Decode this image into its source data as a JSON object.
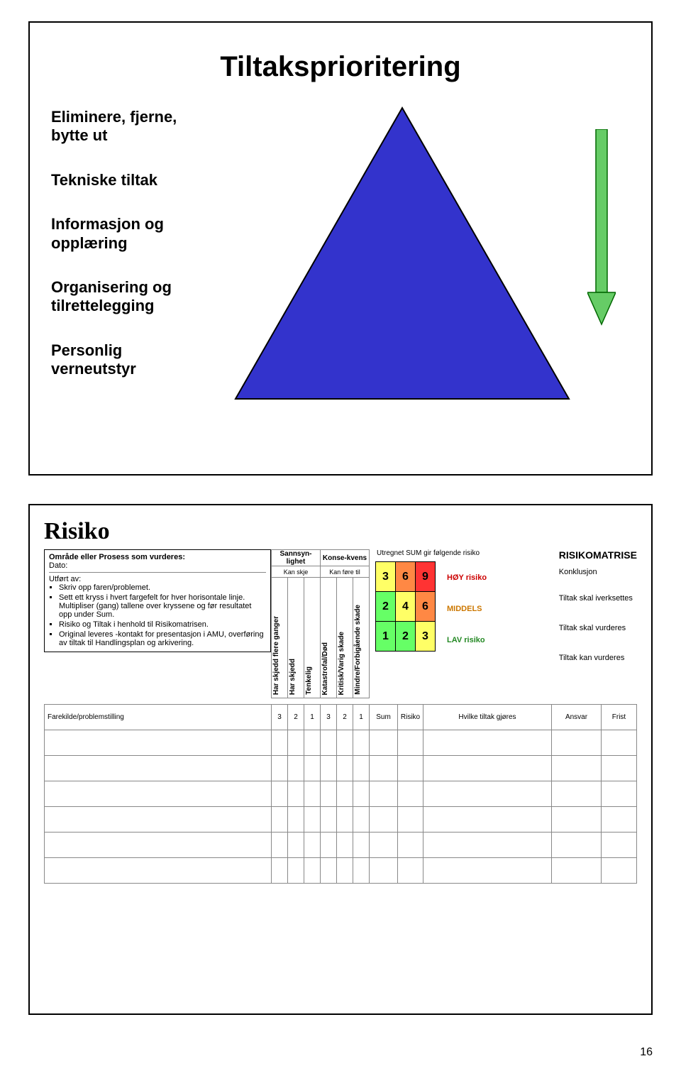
{
  "slide1": {
    "title": "Tiltaksprioritering",
    "items": [
      "Eliminere, fjerne,\nbytte ut",
      "Tekniske tiltak",
      "Informasjon og\nopplæring",
      "Organisering og\ntilrettelegging",
      "Personlig\nverneutstyr"
    ],
    "triangle": {
      "fill": "#3333cc",
      "stroke": "#000000"
    },
    "arrow": {
      "fill": "#66cc66",
      "stroke": "#006600"
    }
  },
  "slide2": {
    "title": "Risiko",
    "sidebox": {
      "line1": "Område eller Prosess som vurderes:",
      "line2": "Dato:",
      "line3": "Utført av:",
      "bullets": [
        "Skriv opp faren/problemet.",
        "Sett ett kryss i hvert fargefelt for hver horisontale linje. Multipliser (gang) tallene over kryssene og før resultatet opp under Sum.",
        "Risiko og Tiltak i henhold til Risikomatrisen.",
        "Original leveres -kontakt for presentasjon i AMU, overføring av tiltak til Handlingsplan og arkivering."
      ]
    },
    "colhead": {
      "top1": "Sannsyn-lighet",
      "top2": "Konse-kvens",
      "sub1": "Kan skje",
      "sub2": "Kan føre til",
      "vert": [
        "Har skjedd flere ganger",
        "Har skjedd",
        "Tenkelig",
        "Katastrofal/Død",
        "Kritisk/Varig skade",
        "Mindre/Forbigående skade"
      ]
    },
    "matrix": {
      "header": "Utregnet SUM gir følgende risiko",
      "rows": [
        {
          "cells": [
            "3",
            "6",
            "9"
          ],
          "colors": [
            "#ffff66",
            "#ff8844",
            "#ff3333"
          ],
          "label": "HØY risiko",
          "label_color": "#cc0000"
        },
        {
          "cells": [
            "2",
            "4",
            "6"
          ],
          "colors": [
            "#66ff66",
            "#ffff66",
            "#ff8844"
          ],
          "label": "MIDDELS",
          "label_color": "#cc7700"
        },
        {
          "cells": [
            "1",
            "2",
            "3"
          ],
          "colors": [
            "#66ff66",
            "#66ff66",
            "#ffff66"
          ],
          "label": "LAV risiko",
          "label_color": "#228822"
        }
      ]
    },
    "right": {
      "title": "RISIKOMATRISE",
      "sub": "Konklusjon",
      "rows": [
        "Tiltak skal iverksettes",
        "Tiltak skal vurderes",
        "Tiltak kan vurderes"
      ]
    },
    "table": {
      "h_fk": "Farekilde/problemstilling",
      "nums": [
        "3",
        "2",
        "1",
        "3",
        "2",
        "1"
      ],
      "h_sum": "Sum",
      "h_risiko": "Risiko",
      "h_tiltak": "Hvilke tiltak gjøres",
      "h_ansvar": "Ansvar",
      "h_frist": "Frist",
      "blank_rows": 6
    }
  },
  "page_number": "16"
}
